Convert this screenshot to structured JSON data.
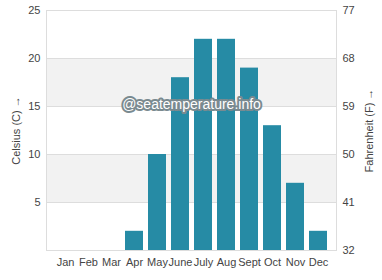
{
  "chart_data": {
    "type": "bar",
    "categories": [
      "Jan",
      "Feb",
      "Mar",
      "Apr",
      "May",
      "June",
      "July",
      "Aug",
      "Sept",
      "Oct",
      "Nov",
      "Dec"
    ],
    "values": [
      0,
      0,
      0,
      2,
      10,
      18,
      22,
      22,
      19,
      13,
      7,
      2
    ],
    "color": "#268ba5",
    "y_label": "Celsius (C)",
    "y2_label": "Fahrenheit (F)",
    "ylim": [
      0,
      25
    ],
    "yticks": [
      5,
      10,
      15,
      20,
      25
    ],
    "y2lim": [
      32,
      77
    ],
    "y2ticks": [
      32,
      41,
      50,
      59,
      68,
      77
    ],
    "annotations": [
      "@seatemperature.info"
    ],
    "grid": true
  }
}
